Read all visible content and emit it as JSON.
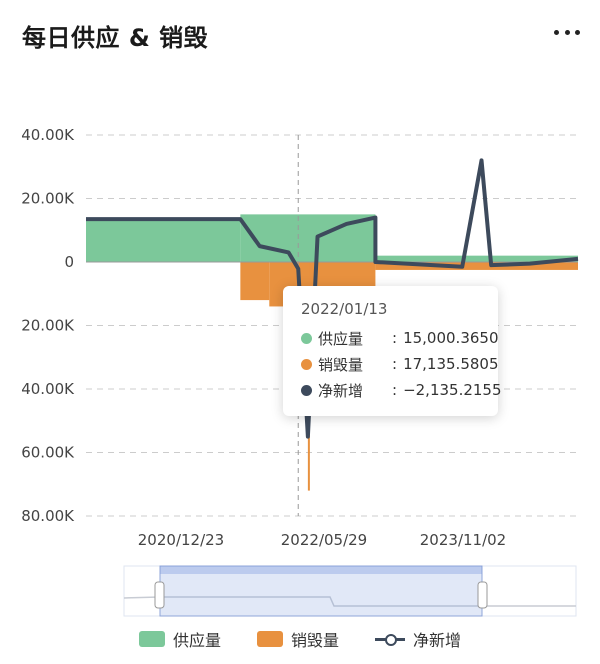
{
  "title": "每日供应 & 销毁",
  "menu_icon": "more-horizontal-icon",
  "colors": {
    "supply": "#7cc89a",
    "burn": "#e8913f",
    "net": "#3d4a5c",
    "grid": "#cccccc"
  },
  "chart_data": {
    "type": "bar",
    "title": "每日供应 & 销毁",
    "y_tick_labels": [
      "40.00K",
      "20.00K",
      "0",
      "20.00K",
      "40.00K",
      "60.00K",
      "80.00K"
    ],
    "y_tick_values": [
      40000,
      20000,
      0,
      -20000,
      -40000,
      -60000,
      -80000
    ],
    "ylim": [
      -80000,
      40000
    ],
    "x_tick_labels": [
      "2020/12/23",
      "2022/05/29",
      "2023/11/02"
    ],
    "x_range": [
      "2020-03",
      "2024-06"
    ],
    "grid": true,
    "legend_position": "bottom",
    "series": [
      {
        "name": "供应量",
        "style": "bar",
        "segments": [
          {
            "from": "2020-03",
            "to": "2021-07",
            "value": 13500
          },
          {
            "from": "2021-07",
            "to": "2022-09",
            "value": 15000
          },
          {
            "from": "2022-09",
            "to": "2024-06",
            "value": 2000
          }
        ]
      },
      {
        "name": "销毁量",
        "style": "bar",
        "segments": [
          {
            "from": "2021-07",
            "to": "2021-10",
            "value": 12000
          },
          {
            "from": "2021-10",
            "to": "2022-03",
            "value": 14000
          },
          {
            "from": "2022-03",
            "to": "2022-09",
            "value": 9000
          },
          {
            "from": "2022-09",
            "to": "2024-06",
            "value": 2500
          }
        ],
        "spike": {
          "x": "2022-02",
          "value": 72000
        }
      },
      {
        "name": "净新增",
        "style": "line",
        "points": [
          {
            "x": "2020-03",
            "y": 13500
          },
          {
            "x": "2021-07",
            "y": 13500
          },
          {
            "x": "2021-09",
            "y": 5000
          },
          {
            "x": "2021-12",
            "y": 3000
          },
          {
            "x": "2022-01",
            "y": -2135.2155
          },
          {
            "x": "2022-02",
            "y": -55000
          },
          {
            "x": "2022-03",
            "y": 8000
          },
          {
            "x": "2022-06",
            "y": 12000
          },
          {
            "x": "2022-09",
            "y": 14000
          },
          {
            "x": "2022-09",
            "y": 0
          },
          {
            "x": "2023-06",
            "y": -1500
          },
          {
            "x": "2023-08",
            "y": 32000
          },
          {
            "x": "2023-09",
            "y": -1000
          },
          {
            "x": "2024-01",
            "y": -500
          },
          {
            "x": "2024-06",
            "y": 1000
          }
        ]
      }
    ],
    "tooltip": {
      "date": "2022/01/13",
      "rows": [
        {
          "name": "供应量",
          "value": "15,000.3650"
        },
        {
          "name": "销毁量",
          "value": "17,135.5805"
        },
        {
          "name": "净新增",
          "value": "−2,135.2155"
        }
      ]
    }
  },
  "legend": [
    {
      "name": "供应量",
      "icon": "green-square-icon"
    },
    {
      "name": "销毁量",
      "icon": "orange-square-icon"
    },
    {
      "name": "净新增",
      "icon": "line-circle-icon"
    }
  ]
}
